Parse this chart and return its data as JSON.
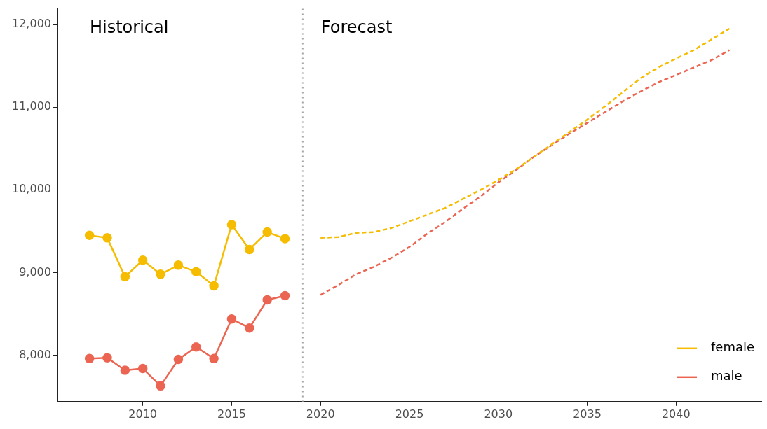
{
  "chart_data": {
    "type": "line",
    "xlim": [
      2005.2,
      2044.8
    ],
    "ylim": [
      7440,
      12190
    ],
    "xticks": [
      2010,
      2015,
      2020,
      2025,
      2030,
      2035,
      2040
    ],
    "yticks": [
      {
        "value": 8000,
        "label": "8,000"
      },
      {
        "value": 9000,
        "label": "9,000"
      },
      {
        "value": 10000,
        "label": "10,000"
      },
      {
        "value": 11000,
        "label": "11,000"
      },
      {
        "value": 12000,
        "label": "12,000"
      }
    ],
    "grid": false,
    "legend": "bottom right",
    "annotations": [
      "Historical",
      "Forecast"
    ],
    "ref_lines": [
      {
        "axis": "x",
        "value": 2019,
        "color": "#a6a6a6",
        "line_style": "dotted"
      }
    ],
    "series": [
      {
        "name": "female",
        "color": "#f5bc00",
        "marker": "circle",
        "line_style": "solid",
        "x": [
          2007,
          2008,
          2009,
          2010,
          2011,
          2012,
          2013,
          2014,
          2015,
          2016,
          2017,
          2018
        ],
        "values": [
          9450,
          9420,
          8950,
          9150,
          8980,
          9090,
          9010,
          8840,
          9580,
          9280,
          9490,
          9410
        ]
      },
      {
        "name": "male",
        "color": "#eb6552",
        "marker": "circle",
        "line_style": "solid",
        "x": [
          2007,
          2008,
          2009,
          2010,
          2011,
          2012,
          2013,
          2014,
          2015,
          2016,
          2017,
          2018
        ],
        "values": [
          7960,
          7970,
          7820,
          7840,
          7630,
          7950,
          8100,
          7960,
          8440,
          8330,
          8670,
          8720
        ]
      },
      {
        "color": "#f5bc00",
        "marker": "none",
        "line_style": "dashed",
        "x": [
          2020,
          2021,
          2022,
          2023,
          2024,
          2025,
          2026,
          2027,
          2028,
          2029,
          2030,
          2031,
          2032,
          2033,
          2034,
          2035,
          2036,
          2037,
          2038,
          2039,
          2040,
          2041,
          2042,
          2043
        ],
        "values": [
          9420,
          9430,
          9480,
          9490,
          9540,
          9620,
          9700,
          9780,
          9890,
          10000,
          10120,
          10250,
          10400,
          10550,
          10700,
          10850,
          11010,
          11180,
          11350,
          11480,
          11590,
          11690,
          11820,
          11950
        ]
      },
      {
        "color": "#eb6552",
        "marker": "none",
        "line_style": "dashed",
        "x": [
          2020,
          2021,
          2022,
          2023,
          2024,
          2025,
          2026,
          2027,
          2028,
          2029,
          2030,
          2031,
          2032,
          2033,
          2034,
          2035,
          2036,
          2037,
          2038,
          2039,
          2040,
          2041,
          2042,
          2043
        ],
        "values": [
          8730,
          8850,
          8980,
          9070,
          9180,
          9310,
          9470,
          9610,
          9770,
          9920,
          10090,
          10240,
          10400,
          10540,
          10680,
          10810,
          10940,
          11070,
          11190,
          11300,
          11390,
          11480,
          11570,
          11690
        ]
      }
    ]
  }
}
